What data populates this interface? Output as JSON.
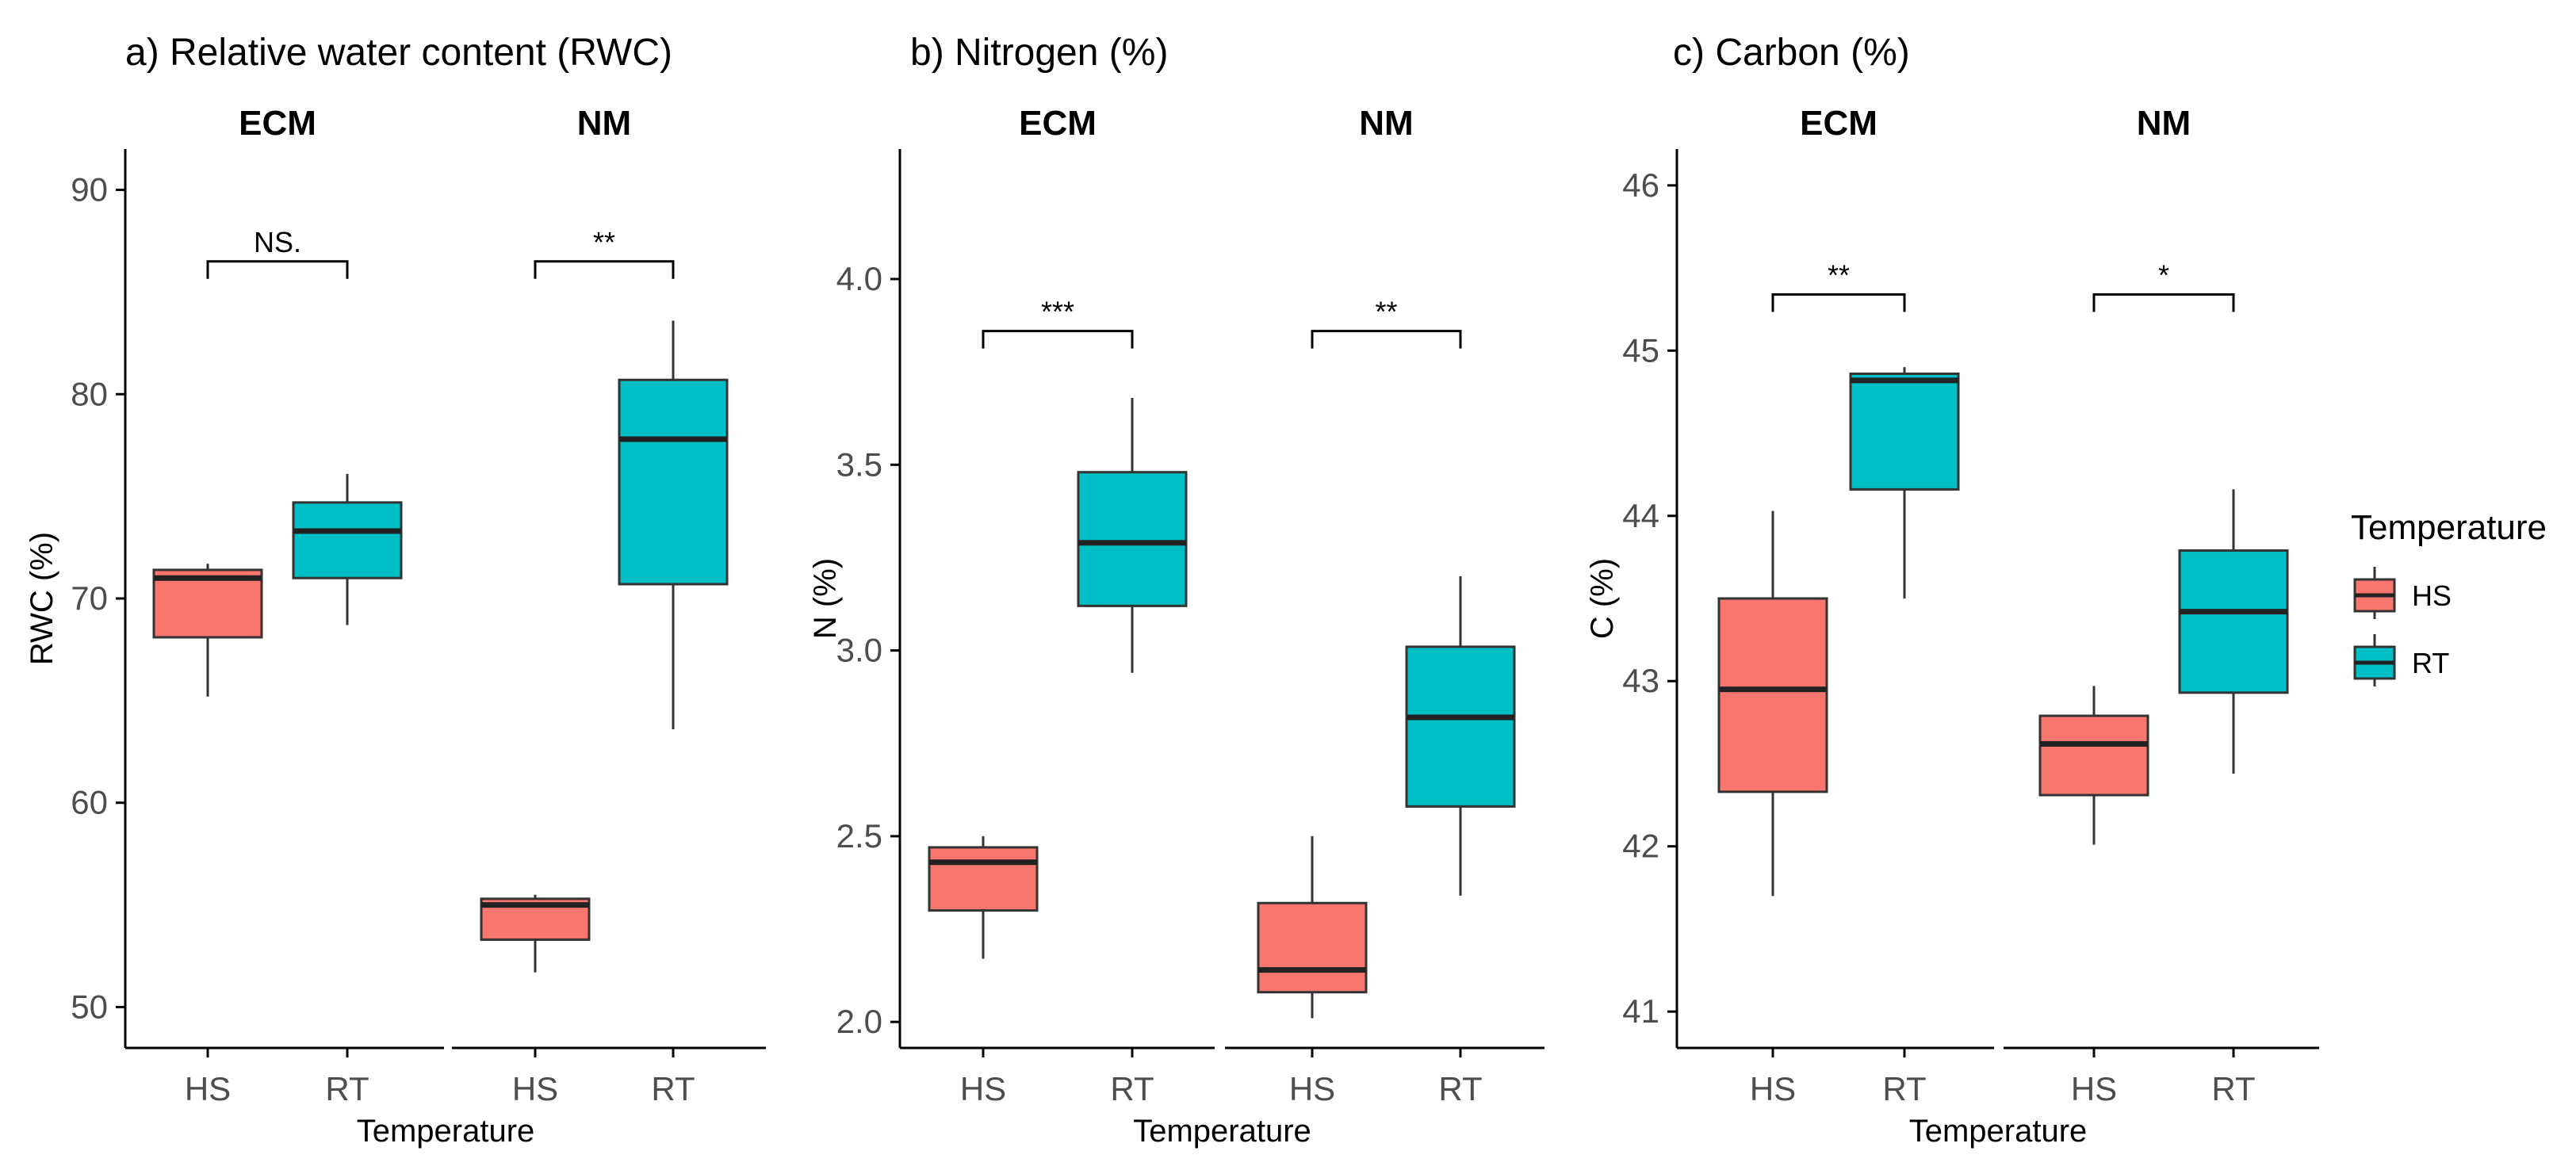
{
  "colors": {
    "HS": "#F8766D",
    "RT": "#00BFC4",
    "line": "#333333",
    "axis": "#000000"
  },
  "legend": {
    "title": "Temperature",
    "items": [
      {
        "key": "HS",
        "label": "HS"
      },
      {
        "key": "RT",
        "label": "RT"
      }
    ]
  },
  "chart_data": [
    {
      "type": "boxplot",
      "panel": "a",
      "title": "a) Relative water content (RWC)",
      "ylabel": "RWC (%)",
      "xlabel": "Temperature",
      "ylim": [
        48,
        92
      ],
      "yticks": [
        50,
        60,
        70,
        80,
        90
      ],
      "facets": [
        {
          "name": "ECM",
          "boxes": [
            {
              "group": "HS",
              "min": 65.2,
              "q1": 68.1,
              "median": 71.0,
              "q3": 71.4,
              "max": 71.7
            },
            {
              "group": "RT",
              "min": 68.7,
              "q1": 71.0,
              "median": 73.3,
              "q3": 74.7,
              "max": 76.1
            }
          ],
          "significance": {
            "label": "NS.",
            "y": 86.5
          }
        },
        {
          "name": "NM",
          "boxes": [
            {
              "group": "HS",
              "min": 51.7,
              "q1": 53.3,
              "median": 55.0,
              "q3": 55.3,
              "max": 55.5
            },
            {
              "group": "RT",
              "min": 63.6,
              "q1": 70.7,
              "median": 77.8,
              "q3": 80.7,
              "max": 83.6
            }
          ],
          "significance": {
            "label": "**",
            "y": 86.5
          }
        }
      ]
    },
    {
      "type": "boxplot",
      "panel": "b",
      "title": "b) Nitrogen (%)",
      "ylabel": "N (%)",
      "xlabel": "Temperature",
      "ylim": [
        1.93,
        4.35
      ],
      "yticks": [
        2.0,
        2.5,
        3.0,
        3.5,
        4.0
      ],
      "ytick_labels": [
        "2.0",
        "2.5",
        "3.0",
        "3.5",
        "4.0"
      ],
      "facets": [
        {
          "name": "ECM",
          "boxes": [
            {
              "group": "HS",
              "min": 2.17,
              "q1": 2.3,
              "median": 2.43,
              "q3": 2.47,
              "max": 2.5
            },
            {
              "group": "RT",
              "min": 2.94,
              "q1": 3.12,
              "median": 3.29,
              "q3": 3.48,
              "max": 3.68
            }
          ],
          "significance": {
            "label": "***",
            "y": 3.86
          }
        },
        {
          "name": "NM",
          "boxes": [
            {
              "group": "HS",
              "min": 2.01,
              "q1": 2.08,
              "median": 2.14,
              "q3": 2.32,
              "max": 2.5
            },
            {
              "group": "RT",
              "min": 2.34,
              "q1": 2.58,
              "median": 2.82,
              "q3": 3.01,
              "max": 3.2
            }
          ],
          "significance": {
            "label": "**",
            "y": 3.86
          }
        }
      ]
    },
    {
      "type": "boxplot",
      "panel": "c",
      "title": "c) Carbon (%)",
      "ylabel": "C (%)",
      "xlabel": "Temperature",
      "ylim": [
        40.78,
        46.22
      ],
      "yticks": [
        41,
        42,
        43,
        44,
        45,
        46
      ],
      "facets": [
        {
          "name": "ECM",
          "boxes": [
            {
              "group": "HS",
              "min": 41.7,
              "q1": 42.33,
              "median": 42.95,
              "q3": 43.5,
              "max": 44.03
            },
            {
              "group": "RT",
              "min": 43.5,
              "q1": 44.16,
              "median": 44.82,
              "q3": 44.86,
              "max": 44.9
            }
          ],
          "significance": {
            "label": "**",
            "y": 45.34
          }
        },
        {
          "name": "NM",
          "boxes": [
            {
              "group": "HS",
              "min": 42.01,
              "q1": 42.31,
              "median": 42.62,
              "q3": 42.79,
              "max": 42.97
            },
            {
              "group": "RT",
              "min": 42.44,
              "q1": 42.93,
              "median": 43.42,
              "q3": 43.79,
              "max": 44.16
            }
          ],
          "significance": {
            "label": "*",
            "y": 45.34
          }
        }
      ]
    }
  ]
}
